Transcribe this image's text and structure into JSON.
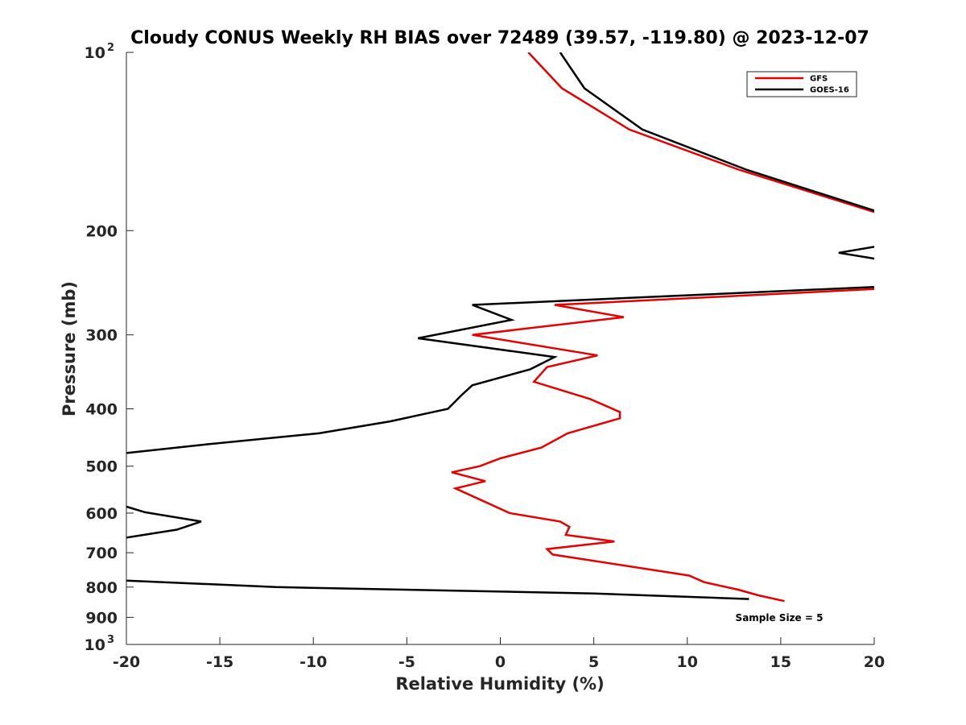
{
  "chart_data": {
    "type": "line",
    "title": "Cloudy CONUS Weekly RH BIAS over 72489 (39.57, -119.80) @ 2023-12-07",
    "xlabel": "Relative Humidity (%)",
    "ylabel": "Pressure (mb)",
    "xlim": [
      -20,
      20
    ],
    "ylim": [
      100,
      1000
    ],
    "y_scale": "log",
    "y_reversed": true,
    "grid": false,
    "legend_position": "top-right",
    "x_ticks": [
      "-20",
      "-15",
      "-10",
      "-5",
      "0",
      "5",
      "10",
      "15",
      "20"
    ],
    "y_ticks": [
      {
        "value": 100,
        "base": "10",
        "exp": "2"
      },
      {
        "value": 200,
        "label": "200"
      },
      {
        "value": 300,
        "label": "300"
      },
      {
        "value": 400,
        "label": "400"
      },
      {
        "value": 500,
        "label": "500"
      },
      {
        "value": 600,
        "label": "600"
      },
      {
        "value": 700,
        "label": "700"
      },
      {
        "value": 800,
        "label": "800"
      },
      {
        "value": 900,
        "label": "900"
      },
      {
        "value": 1000,
        "base": "10",
        "exp": "3"
      }
    ],
    "annotation": "Sample Size = 5",
    "series": [
      {
        "name": "GFS",
        "color": "#e60000",
        "points": [
          [
            1.5,
            100
          ],
          [
            3.3,
            115
          ],
          [
            6.9,
            135
          ],
          [
            12.8,
            158
          ],
          [
            20.0,
            186
          ],
          [
            28,
            205
          ],
          [
            35,
            235
          ],
          [
            20.0,
            251
          ],
          [
            2.9,
            267
          ],
          [
            6.6,
            280
          ],
          [
            -1.5,
            300
          ],
          [
            5.2,
            325
          ],
          [
            2.5,
            340
          ],
          [
            1.8,
            360
          ],
          [
            4.8,
            385
          ],
          [
            6.4,
            405
          ],
          [
            6.4,
            415
          ],
          [
            3.6,
            440
          ],
          [
            2.2,
            465
          ],
          [
            0.0,
            485
          ],
          [
            -1.1,
            500
          ],
          [
            -2.6,
            512
          ],
          [
            -0.8,
            530
          ],
          [
            -2.4,
            545
          ],
          [
            0.5,
            600
          ],
          [
            3.2,
            620
          ],
          [
            3.7,
            633
          ],
          [
            3.5,
            653
          ],
          [
            6.1,
            670
          ],
          [
            2.5,
            690
          ],
          [
            2.8,
            705
          ],
          [
            10.1,
            765
          ],
          [
            10.9,
            785
          ],
          [
            12.7,
            808
          ],
          [
            13.8,
            826
          ],
          [
            15.2,
            845
          ]
        ]
      },
      {
        "name": "GOES-16",
        "color": "#000000",
        "points": [
          [
            3.2,
            100
          ],
          [
            4.5,
            115
          ],
          [
            7.6,
            135
          ],
          [
            13.2,
            158
          ],
          [
            20.0,
            185
          ],
          [
            30,
            200
          ],
          [
            20.0,
            213
          ],
          [
            18.1,
            218
          ],
          [
            20.0,
            223
          ],
          [
            30,
            235
          ],
          [
            20.0,
            249
          ],
          [
            -1.5,
            267
          ],
          [
            0.6,
            283
          ],
          [
            -4.4,
            304
          ],
          [
            2.9,
            327
          ],
          [
            1.6,
            343
          ],
          [
            -1.5,
            365
          ],
          [
            -2.1,
            380
          ],
          [
            -2.8,
            400
          ],
          [
            -5.9,
            420
          ],
          [
            -9.7,
            440
          ],
          [
            -15.9,
            460
          ],
          [
            -20.0,
            475
          ],
          [
            -30,
            500
          ],
          [
            -30,
            570
          ],
          [
            -20.0,
            585
          ],
          [
            -19.0,
            598
          ],
          [
            -16.0,
            620
          ],
          [
            -17.3,
            640
          ],
          [
            -20.0,
            660
          ],
          [
            -30,
            700
          ],
          [
            -20.0,
            780
          ],
          [
            -12.0,
            800
          ],
          [
            5.0,
            820
          ],
          [
            13.3,
            838
          ]
        ]
      }
    ]
  }
}
